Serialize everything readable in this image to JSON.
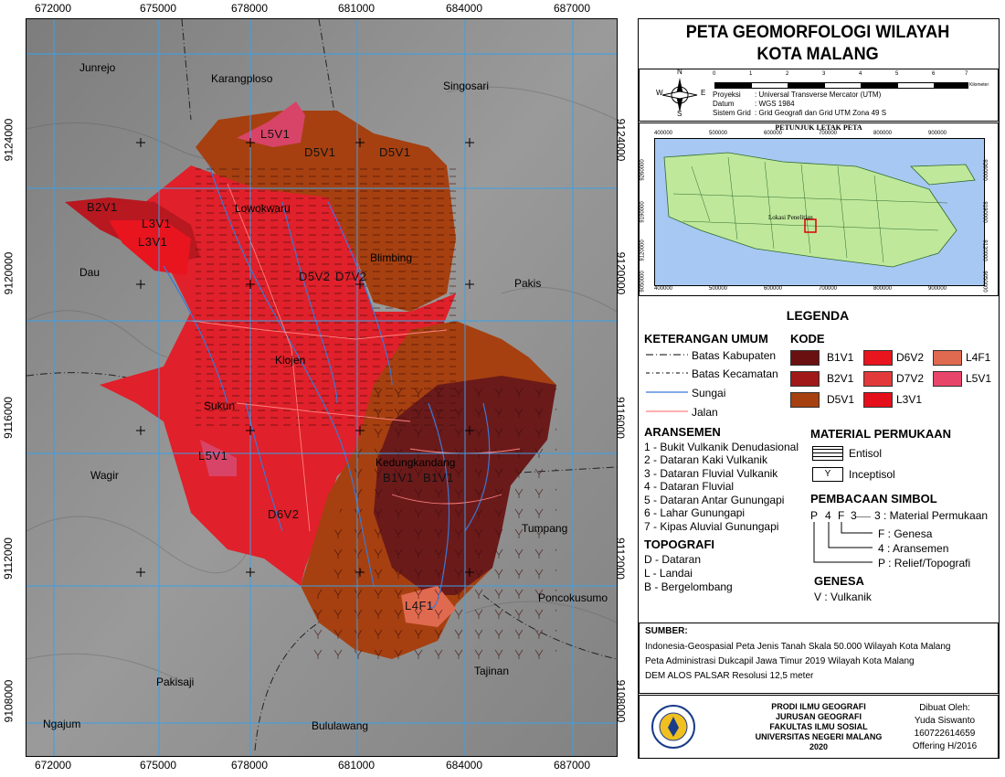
{
  "title": {
    "line1": "PETA GEOMORFOLOGI WILAYAH",
    "line2": "KOTA MALANG"
  },
  "scale_bar": {
    "ticks": [
      "0",
      "1",
      "2",
      "3",
      "4",
      "5",
      "6",
      "7"
    ],
    "unit": "Kilometer"
  },
  "projection": {
    "proyeksi_label": "Proyeksi",
    "proyeksi_value": ": Universal Transverse Mercator (UTM)",
    "datum_label": "Datum",
    "datum_value": ": WGS 1984",
    "grid_label": "Sistem Grid",
    "grid_value": ": Grid Geografi dan Grid UTM Zona 49 S"
  },
  "compass": {
    "n": "N",
    "s": "S",
    "e": "E",
    "w": "W"
  },
  "inset": {
    "title": "PETUNJUK LETAK PETA",
    "x_ticks": [
      "400000",
      "500000",
      "600000",
      "700000",
      "800000",
      "900000"
    ],
    "y_ticks": [
      "9260000",
      "9190000",
      "9120000",
      "9050000"
    ],
    "location_label": "Lokasi Penelitian"
  },
  "map": {
    "x_ticks": [
      "672000",
      "675000",
      "678000",
      "681000",
      "684000",
      "687000"
    ],
    "y_ticks": [
      "9124000",
      "9120000",
      "9116000",
      "9112000",
      "9108000"
    ],
    "regions": [
      "Junrejo",
      "Karangploso",
      "Singosari",
      "Dau",
      "Pakis",
      "Wagir",
      "Tumpang",
      "Poncokusumo",
      "Pakisaji",
      "Tajinan",
      "Ngajum",
      "Bululawang"
    ],
    "districts": [
      "Lowokwaru",
      "Blimbing",
      "Klojen",
      "Sukun",
      "Kedungkandang"
    ],
    "codes": [
      "L5V1",
      "D5V1",
      "D5V1",
      "B2V1",
      "L3V1",
      "L3V1",
      "D5V2",
      "D7V2",
      "L5V1",
      "B1V1",
      "B1V1",
      "D6V2",
      "L4F1"
    ]
  },
  "legend": {
    "title": "LEGENDA",
    "umum": {
      "heading": "KETERANGAN UMUM",
      "items": [
        "Batas Kabupaten",
        "Batas Kecamatan",
        "Sungai",
        "Jalan"
      ]
    },
    "kode": {
      "heading": "KODE",
      "items": [
        {
          "label": "B1V1",
          "color": "#6b1010"
        },
        {
          "label": "D6V2",
          "color": "#e8141e"
        },
        {
          "label": "L4F1",
          "color": "#e06a50"
        },
        {
          "label": "B2V1",
          "color": "#a01818"
        },
        {
          "label": "D7V2",
          "color": "#e23a3a"
        },
        {
          "label": "L5V1",
          "color": "#e8456a"
        },
        {
          "label": "D5V1",
          "color": "#a64010"
        },
        {
          "label": "L3V1",
          "color": "#e40f1a"
        }
      ]
    },
    "aransemen": {
      "heading": "ARANSEMEN",
      "items": [
        "1 - Bukit Vulkanik Denudasional",
        "2 - Dataran Kaki Vulkanik",
        "3 - Dataran Fluvial Vulkanik",
        "4 - Dataran Fluvial",
        "5 - Dataran Antar Gunungapi",
        "6 - Lahar Gunungapi",
        "7 - Kipas Aluvial Gunungapi"
      ]
    },
    "material": {
      "heading": "MATERIAL PERMUKAAN",
      "items": [
        "Entisol",
        "Inceptisol"
      ],
      "inceptisol_symbol": "Y"
    },
    "pembacaan": {
      "heading": "PEMBACAAN SIMBOL",
      "code_chars": [
        "P",
        "4",
        "F",
        "3"
      ],
      "items": [
        "3 : Material Permukaan",
        "F : Genesa",
        "4 : Aransemen",
        "P : Relief/Topografi"
      ]
    },
    "topografi": {
      "heading": "TOPOGRAFI",
      "items": [
        "D - Dataran",
        "L - Landai",
        "B - Bergelombang"
      ]
    },
    "genesa": {
      "heading": "GENESA",
      "items": [
        "V : Vulkanik"
      ]
    }
  },
  "sumber": {
    "heading": "SUMBER:",
    "items": [
      "Indonesia-Geospasial Peta Jenis Tanah Skala 50.000 Wilayah Kota Malang",
      "Peta Administrasi Dukcapil Jawa Timur 2019 Wilayah Kota Malang",
      "DEM ALOS PALSAR Resolusi 12,5 meter"
    ]
  },
  "credits": {
    "lines": [
      "PRODI ILMU GEOGRAFI",
      "JURUSAN GEOGRAFI",
      "FAKULTAS ILMU SOSIAL",
      "UNIVERSITAS NEGERI MALANG",
      "2020"
    ],
    "author_lines": [
      "Dibuat Oleh:",
      "Yuda Siswanto",
      "160722614659",
      "Offering H/2016"
    ]
  },
  "colors": {
    "river": "#3a78d6",
    "road": "#ff8080",
    "grid": "#3aa0e8",
    "hillshade": "#8a8a8a"
  }
}
